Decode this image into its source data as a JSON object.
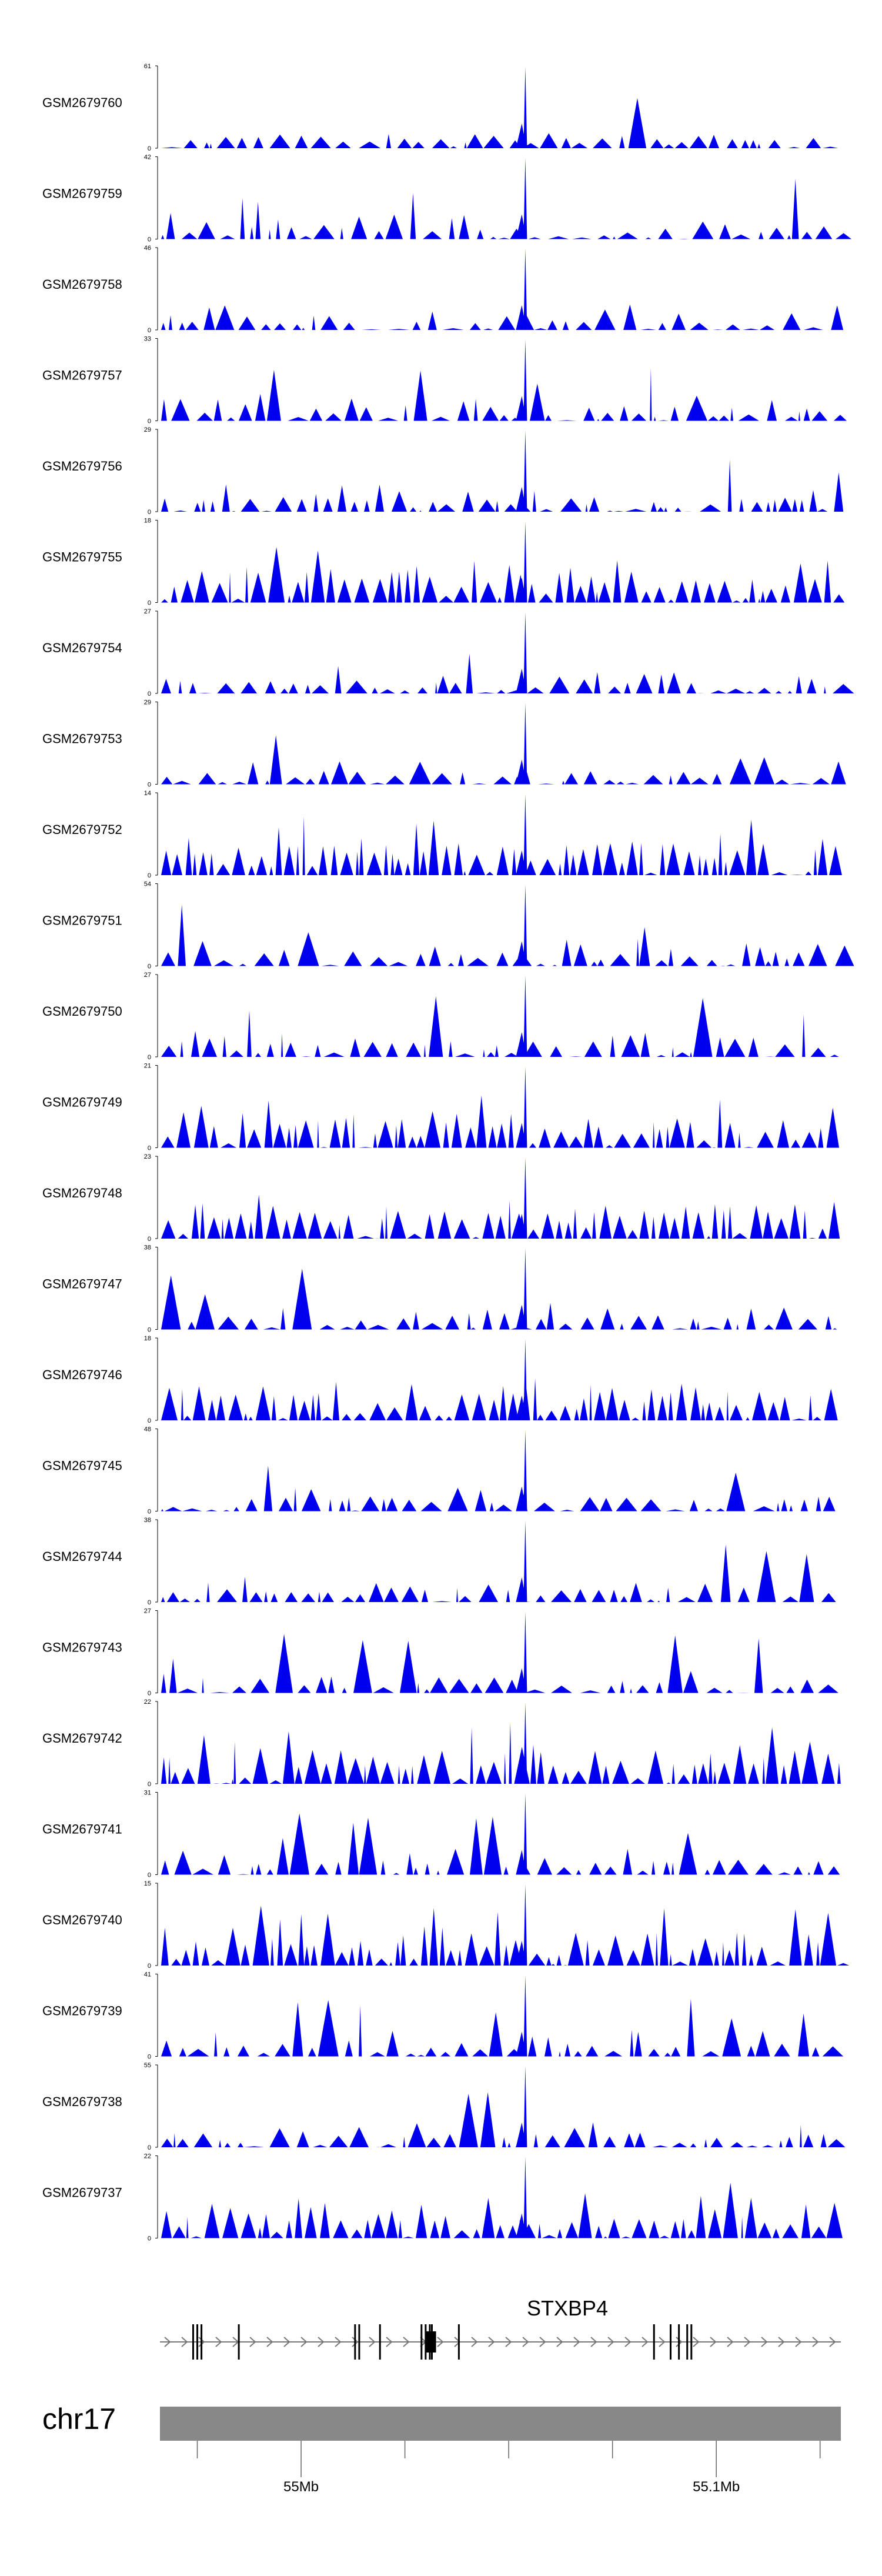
{
  "colors": {
    "signal": "#0000ee",
    "axis": "#000000",
    "ideogram": "#888888",
    "gene": "#000000",
    "strand": "#777777",
    "ticks": "#666666"
  },
  "chart_data": {
    "type": "area",
    "title": "",
    "xlabel": "",
    "ylabel": "",
    "chromosome": "chr17",
    "region_mb": [
      54.966,
      55.13
    ],
    "axis_ticks_mb": [
      54.975,
      55.0,
      55.025,
      55.05,
      55.075,
      55.1,
      55.125
    ],
    "axis_labels": [
      {
        "label": "55Mb",
        "mb": 55.0
      },
      {
        "label": "55.1Mb",
        "mb": 55.1
      }
    ],
    "gene": {
      "name": "STXBP4",
      "strand": "+",
      "start_mb": 54.966,
      "end_mb": 55.13,
      "exons_mb": [
        54.974,
        54.975,
        54.976,
        54.985,
        55.013,
        55.014,
        55.019,
        55.029,
        55.03,
        55.031,
        55.0315,
        55.038,
        55.085,
        55.089,
        55.091,
        55.093,
        55.094
      ],
      "thick_exon_mb": [
        55.03,
        55.0325
      ]
    },
    "tracks": [
      {
        "name": "GSM2679760",
        "ymax": 61,
        "ymin": 0,
        "seed": 11
      },
      {
        "name": "GSM2679759",
        "ymax": 42,
        "ymin": 0,
        "seed": 12
      },
      {
        "name": "GSM2679758",
        "ymax": 46,
        "ymin": 0,
        "seed": 13
      },
      {
        "name": "GSM2679757",
        "ymax": 33,
        "ymin": 0,
        "seed": 14
      },
      {
        "name": "GSM2679756",
        "ymax": 29,
        "ymin": 0,
        "seed": 15
      },
      {
        "name": "GSM2679755",
        "ymax": 18,
        "ymin": 0,
        "seed": 16
      },
      {
        "name": "GSM2679754",
        "ymax": 27,
        "ymin": 0,
        "seed": 17
      },
      {
        "name": "GSM2679753",
        "ymax": 29,
        "ymin": 0,
        "seed": 18
      },
      {
        "name": "GSM2679752",
        "ymax": 14,
        "ymin": 0,
        "seed": 19
      },
      {
        "name": "GSM2679751",
        "ymax": 54,
        "ymin": 0,
        "seed": 20
      },
      {
        "name": "GSM2679750",
        "ymax": 27,
        "ymin": 0,
        "seed": 21
      },
      {
        "name": "GSM2679749",
        "ymax": 21,
        "ymin": 0,
        "seed": 22
      },
      {
        "name": "GSM2679748",
        "ymax": 23,
        "ymin": 0,
        "seed": 23
      },
      {
        "name": "GSM2679747",
        "ymax": 38,
        "ymin": 0,
        "seed": 24
      },
      {
        "name": "GSM2679746",
        "ymax": 18,
        "ymin": 0,
        "seed": 25
      },
      {
        "name": "GSM2679745",
        "ymax": 48,
        "ymin": 0,
        "seed": 26
      },
      {
        "name": "GSM2679744",
        "ymax": 38,
        "ymin": 0,
        "seed": 27
      },
      {
        "name": "GSM2679743",
        "ymax": 27,
        "ymin": 0,
        "seed": 28
      },
      {
        "name": "GSM2679742",
        "ymax": 22,
        "ymin": 0,
        "seed": 29
      },
      {
        "name": "GSM2679741",
        "ymax": 31,
        "ymin": 0,
        "seed": 30
      },
      {
        "name": "GSM2679740",
        "ymax": 15,
        "ymin": 0,
        "seed": 31
      },
      {
        "name": "GSM2679739",
        "ymax": 41,
        "ymin": 0,
        "seed": 32
      },
      {
        "name": "GSM2679738",
        "ymax": 55,
        "ymin": 0,
        "seed": 33
      },
      {
        "name": "GSM2679737",
        "ymax": 22,
        "ymin": 0,
        "seed": 34
      }
    ]
  }
}
